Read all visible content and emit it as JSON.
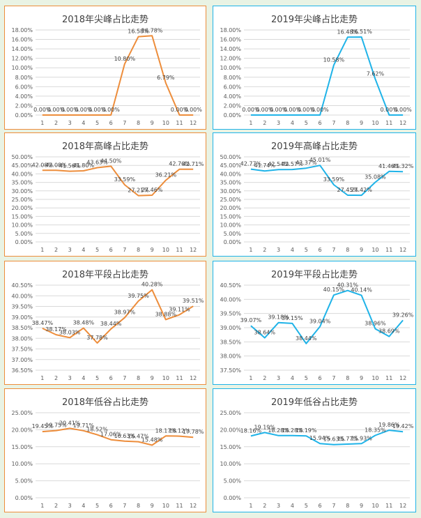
{
  "colors": {
    "orange": "#ed8d3b",
    "blue": "#1fb3e8",
    "grid": "#d9d9d9",
    "text": "#595959"
  },
  "chart_data": [
    {
      "type": "line",
      "title": "2018年尖峰占比走势",
      "color": "#ed8d3b",
      "categories": [
        "1",
        "2",
        "3",
        "4",
        "5",
        "6",
        "7",
        "8",
        "9",
        "10",
        "11",
        "12"
      ],
      "values": [
        0.0,
        0.0,
        0.0,
        0.0,
        0.0,
        0.0,
        10.8,
        16.58,
        16.78,
        6.79,
        0.0,
        0.0
      ],
      "labels": [
        "0.00%",
        "0.00%",
        "0.00%",
        "0.00%",
        "0.00%",
        "0.00%",
        "10.80%",
        "16.58%",
        "16.78%",
        "6.79%",
        "0.00%",
        "0.00%"
      ],
      "ymin": 0,
      "ymax": 18,
      "ystep": 2,
      "yticks": [
        "0.00%",
        "2.00%",
        "4.00%",
        "6.00%",
        "8.00%",
        "10.00%",
        "12.00%",
        "14.00%",
        "16.00%",
        "18.00%"
      ]
    },
    {
      "type": "line",
      "title": "2019年尖峰占比走势",
      "color": "#1fb3e8",
      "categories": [
        "1",
        "2",
        "3",
        "4",
        "5",
        "6",
        "7",
        "8",
        "9",
        "10",
        "11",
        "12"
      ],
      "values": [
        0.0,
        0.0,
        0.0,
        0.0,
        0.0,
        0.0,
        10.58,
        16.48,
        16.51,
        7.62,
        0.0,
        0.0
      ],
      "labels": [
        "0.00%",
        "0.00%",
        "0.00%",
        "0.00%",
        "0.00%",
        "0.00%",
        "10.58%",
        "16.48%",
        "16.51%",
        "7.62%",
        "0.00%",
        "0.00%"
      ],
      "ymin": 0,
      "ymax": 18,
      "ystep": 2,
      "yticks": [
        "0.00%",
        "2.00%",
        "4.00%",
        "6.00%",
        "8.00%",
        "10.00%",
        "12.00%",
        "14.00%",
        "16.00%",
        "18.00%"
      ]
    },
    {
      "type": "line",
      "title": "2018年高峰占比走势",
      "color": "#ed8d3b",
      "categories": [
        "1",
        "2",
        "3",
        "4",
        "5",
        "6",
        "7",
        "8",
        "9",
        "10",
        "11",
        "12"
      ],
      "values": [
        42.08,
        42.08,
        41.56,
        41.8,
        43.63,
        44.5,
        33.59,
        27.21,
        27.46,
        36.21,
        42.76,
        42.71
      ],
      "labels": [
        "42.08%",
        "42.08%",
        "41.56%",
        "41.80%",
        "43.63%",
        "44.50%",
        "33.59%",
        "27.21%",
        "27.46%",
        "36.21%",
        "42.76%",
        "42.71%"
      ],
      "ymin": 0,
      "ymax": 50,
      "ystep": 5,
      "yticks": [
        "0.00%",
        "5.00%",
        "10.00%",
        "15.00%",
        "20.00%",
        "25.00%",
        "30.00%",
        "35.00%",
        "40.00%",
        "45.00%",
        "50.00%"
      ]
    },
    {
      "type": "line",
      "title": "2019年高峰占比走势",
      "color": "#1fb3e8",
      "categories": [
        "1",
        "2",
        "3",
        "4",
        "5",
        "6",
        "7",
        "8",
        "9",
        "10",
        "11",
        "12"
      ],
      "values": [
        42.77,
        41.74,
        42.54,
        42.57,
        43.37,
        45.01,
        33.59,
        27.45,
        27.42,
        35.08,
        41.46,
        41.32
      ],
      "labels": [
        "42.77%",
        "41.74%",
        "42.54%",
        "42.57%",
        "43.37%",
        "45.01%",
        "33.59%",
        "27.45%",
        "27.42%",
        "35.08%",
        "41.46%",
        "41.32%"
      ],
      "ymin": 0,
      "ymax": 50,
      "ystep": 5,
      "yticks": [
        "0.00%",
        "5.00%",
        "10.00%",
        "15.00%",
        "20.00%",
        "25.00%",
        "30.00%",
        "35.00%",
        "40.00%",
        "45.00%",
        "50.00%"
      ]
    },
    {
      "type": "line",
      "title": "2018年平段占比走势",
      "color": "#ed8d3b",
      "categories": [
        "1",
        "2",
        "3",
        "4",
        "5",
        "6",
        "7",
        "8",
        "9",
        "10",
        "11",
        "12"
      ],
      "values": [
        38.47,
        38.17,
        38.03,
        38.48,
        37.78,
        38.44,
        38.97,
        39.75,
        40.28,
        38.88,
        39.11,
        39.51
      ],
      "labels": [
        "38.47%",
        "38.17%",
        "38.03%",
        "38.48%",
        "37.78%",
        "38.44%",
        "38.97%",
        "39.75%",
        "40.28%",
        "38.88%",
        "39.11%",
        "39.51%"
      ],
      "ymin": 36.5,
      "ymax": 40.5,
      "ystep": 0.5,
      "yticks": [
        "36.50%",
        "37.00%",
        "37.50%",
        "38.00%",
        "38.50%",
        "39.00%",
        "39.50%",
        "40.00%",
        "40.50%"
      ]
    },
    {
      "type": "line",
      "title": "2019年平段占比走势",
      "color": "#1fb3e8",
      "categories": [
        "1",
        "2",
        "3",
        "4",
        "5",
        "6",
        "7",
        "8",
        "9",
        "10",
        "11",
        "12"
      ],
      "values": [
        39.07,
        38.64,
        39.18,
        39.15,
        38.44,
        39.04,
        40.15,
        40.31,
        40.14,
        38.96,
        38.69,
        39.26
      ],
      "labels": [
        "39.07%",
        "38.64%",
        "39.18%",
        "39.15%",
        "38.44%",
        "39.04%",
        "40.15%",
        "40.31%",
        "40.14%",
        "38.96%",
        "38.69%",
        "39.26%"
      ],
      "ymin": 37.5,
      "ymax": 40.5,
      "ystep": 0.5,
      "yticks": [
        "37.50%",
        "38.00%",
        "38.50%",
        "39.00%",
        "39.50%",
        "40.00%",
        "40.50%"
      ]
    },
    {
      "type": "line",
      "title": "2018年低谷占比走势",
      "color": "#ed8d3b",
      "categories": [
        "1",
        "2",
        "3",
        "4",
        "5",
        "6",
        "7",
        "8",
        "9",
        "10",
        "11",
        "12"
      ],
      "values": [
        19.45,
        19.75,
        20.41,
        19.71,
        18.52,
        17.06,
        16.63,
        16.47,
        15.48,
        18.17,
        18.12,
        17.78
      ],
      "labels": [
        "19.45%",
        "19.75%",
        "20.41%",
        "19.71%",
        "18.52%",
        "17.06%",
        "16.63%",
        "16.47%",
        "15.48%",
        "18.17%",
        "18.12%",
        "17.78%"
      ],
      "ymin": 0,
      "ymax": 25,
      "ystep": 5,
      "yticks": [
        "0.00%",
        "5.00%",
        "10.00%",
        "15.00%",
        "20.00%",
        "25.00%"
      ]
    },
    {
      "type": "line",
      "title": "2019年低谷占比走势",
      "color": "#1fb3e8",
      "categories": [
        "1",
        "2",
        "3",
        "4",
        "5",
        "6",
        "7",
        "8",
        "9",
        "10",
        "11",
        "12"
      ],
      "values": [
        18.16,
        19.19,
        18.28,
        18.28,
        18.19,
        15.94,
        15.63,
        15.77,
        15.93,
        18.35,
        19.86,
        19.42
      ],
      "labels": [
        "18.16%",
        "19.19%",
        "18.28%",
        "18.28%",
        "18.19%",
        "15.94%",
        "15.63%",
        "15.77%",
        "15.93%",
        "18.35%",
        "19.86%",
        "19.42%"
      ],
      "ymin": 0,
      "ymax": 25,
      "ystep": 5,
      "yticks": [
        "0.00%",
        "5.00%",
        "10.00%",
        "15.00%",
        "20.00%",
        "25.00%"
      ]
    }
  ]
}
